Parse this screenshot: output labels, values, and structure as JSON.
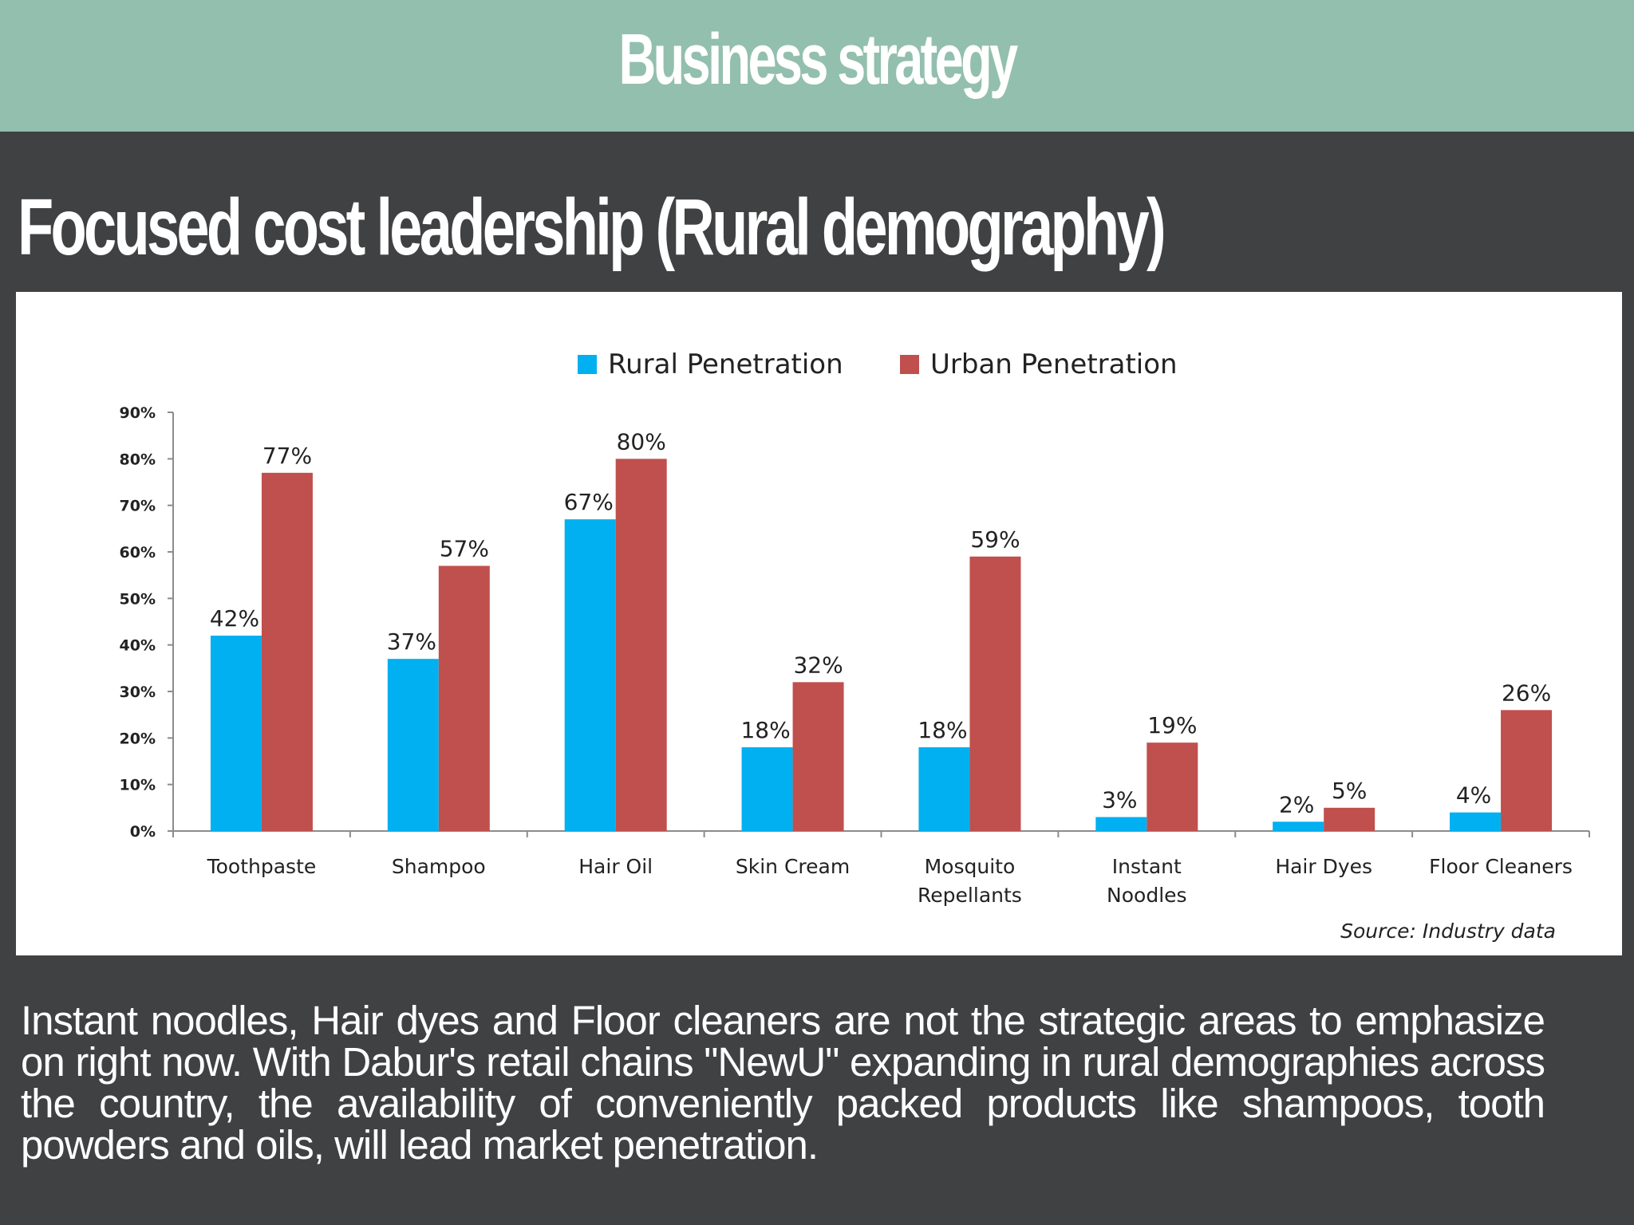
{
  "header": {
    "title": "Business strategy"
  },
  "slide": {
    "title": "Focused cost leadership (Rural demography)"
  },
  "chart_data": {
    "type": "bar",
    "categories": [
      "Toothpaste",
      "Shampoo",
      "Hair Oil",
      "Skin Cream",
      "Mosquito Repellants",
      "Instant Noodles",
      "Hair Dyes",
      "Floor Cleaners"
    ],
    "category_lines": [
      [
        "Toothpaste"
      ],
      [
        "Shampoo"
      ],
      [
        "Hair Oil"
      ],
      [
        "Skin Cream"
      ],
      [
        "Mosquito",
        "Repellants"
      ],
      [
        "Instant",
        "Noodles"
      ],
      [
        "Hair Dyes"
      ],
      [
        "Floor Cleaners"
      ]
    ],
    "series": [
      {
        "name": "Rural Penetration",
        "color": "#00b0f0",
        "values": [
          42,
          37,
          67,
          18,
          18,
          3,
          2,
          4
        ],
        "labels": [
          "42%",
          "37%",
          "67%",
          "18%",
          "18%",
          "3%",
          "2%",
          "4%"
        ]
      },
      {
        "name": "Urban Penetration",
        "color": "#c0504d",
        "values": [
          77,
          57,
          80,
          32,
          59,
          19,
          5,
          26
        ],
        "labels": [
          "77%",
          "57%",
          "80%",
          "32%",
          "59%",
          "19%",
          "5%",
          "26%"
        ]
      }
    ],
    "ylim": [
      0,
      90
    ],
    "yticks": [
      "0%",
      "10%",
      "20%",
      "30%",
      "40%",
      "50%",
      "60%",
      "70%",
      "80%",
      "90%"
    ],
    "legend_position": "top-center",
    "grid": false,
    "source": "Source: Industry data"
  },
  "caption": "Instant noodles, Hair dyes and Floor cleaners are not the strategic areas to emphasize on right now. With Dabur's retail chains \"NewU\" expanding in rural demographies across the country, the availability of conveniently packed products like shampoos, tooth powders and oils, will lead market penetration."
}
